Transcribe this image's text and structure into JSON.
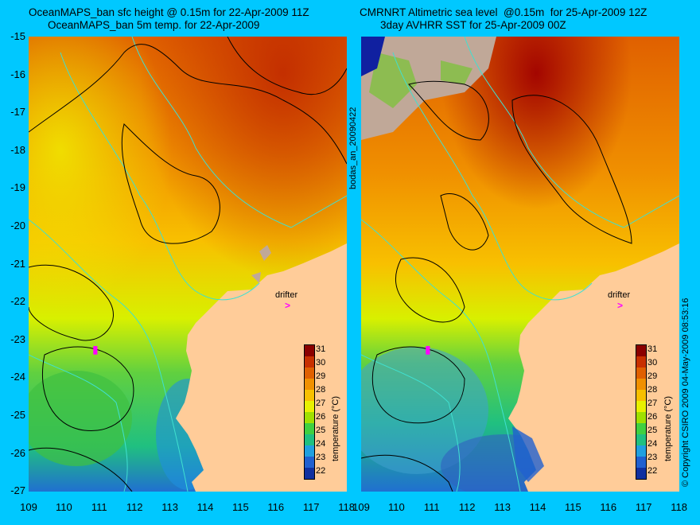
{
  "left_panel": {
    "title_line1": "OceanMAPS_ban sfc height @ 0.15m for 22-Apr-2009 11Z",
    "title_line2": "OceanMAPS_ban 5m temp. for 22-Apr-2009",
    "side_label": "bodas_an_20090422",
    "drifter_label": "drifter"
  },
  "right_panel": {
    "title_line1": "CMRNRT Altimetric sea level  @0.15m  for 25-Apr-2009 12Z",
    "title_line2": "3day AVHRR SST for 25-Apr-2009 00Z",
    "side_label": "© Copyright CSIRO 2009   04-May-2009 08:53:16",
    "drifter_label": "drifter"
  },
  "y_ticks": [
    "-15",
    "-16",
    "-17",
    "-18",
    "-19",
    "-20",
    "-21",
    "-22",
    "-23",
    "-24",
    "-25",
    "-26",
    "-27"
  ],
  "x_ticks": [
    "109",
    "110",
    "111",
    "112",
    "113",
    "114",
    "115",
    "116",
    "117",
    "118"
  ],
  "colorbar": {
    "label": "temperature (°C)",
    "ticks": [
      "31",
      "30",
      "29",
      "28",
      "27",
      "26",
      "25",
      "24",
      "23",
      "22"
    ],
    "colors": [
      "#8b0000",
      "#c83000",
      "#e06000",
      "#f09000",
      "#f8c000",
      "#e8f000",
      "#a0e000",
      "#40d040",
      "#20c080",
      "#20a0e0",
      "#2060d0",
      "#1030a0"
    ]
  },
  "map": {
    "lat_range": [
      -27,
      -15
    ],
    "lon_range": [
      109,
      118
    ],
    "land_color": "#ffcc99",
    "bathy_contour_color": "#40e0d0",
    "sla_contour_color": "#000000"
  }
}
